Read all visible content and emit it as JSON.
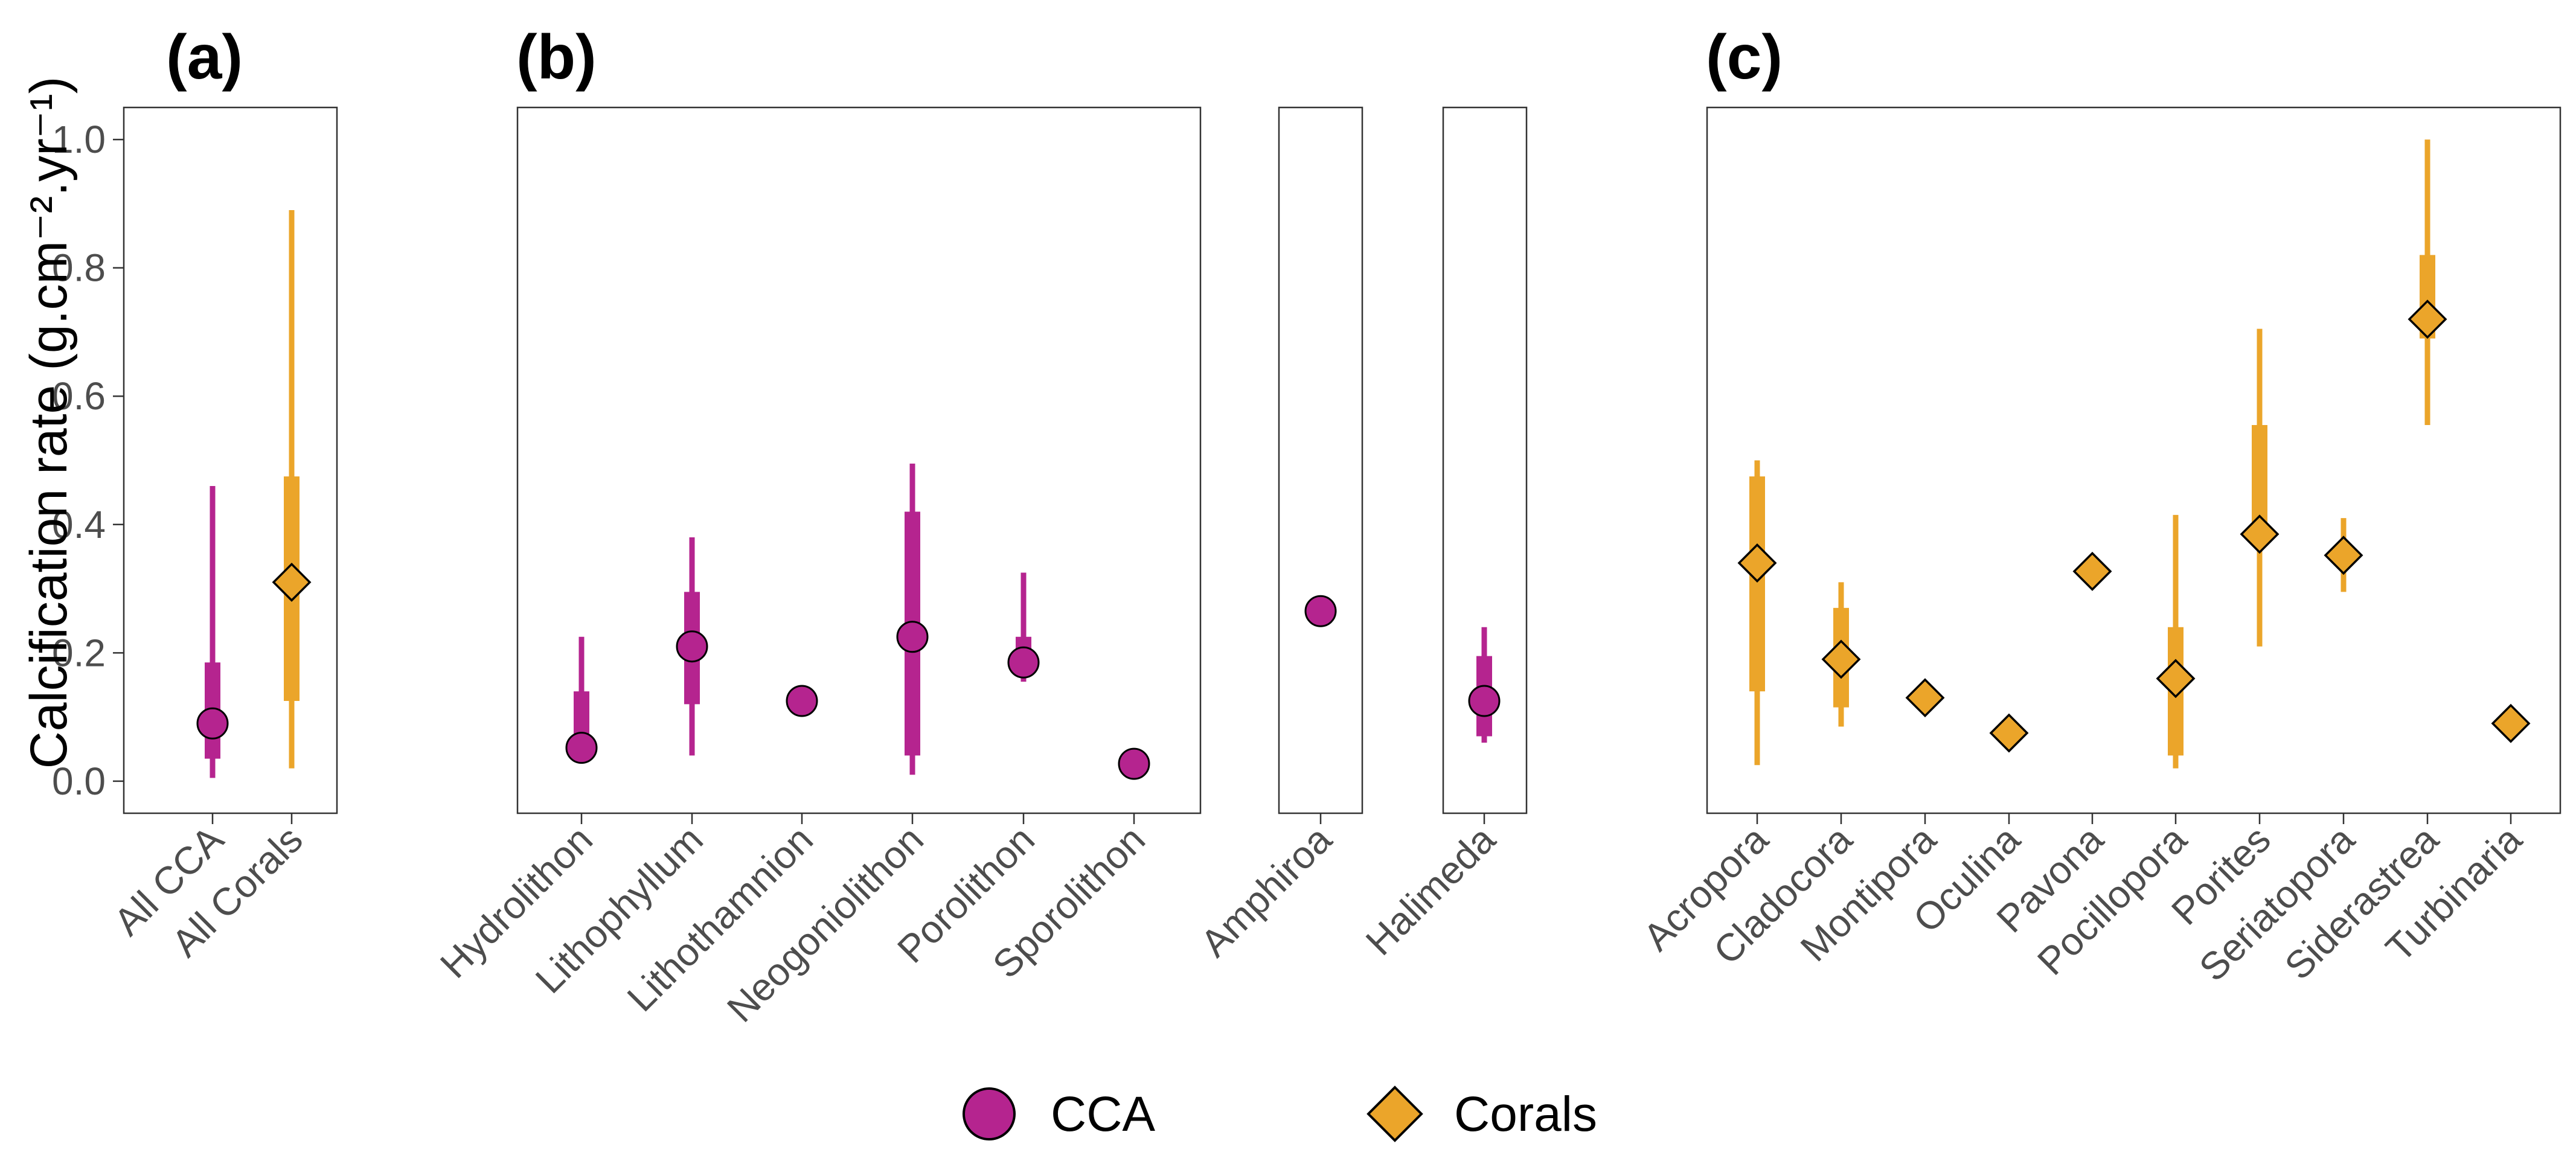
{
  "chart_data": {
    "type": "scatter",
    "ylabel": "Calcification rate (g.cm⁻².yr⁻¹)",
    "ylim": [
      -0.05,
      1.05
    ],
    "yticks": [
      "0.0",
      "0.2",
      "0.4",
      "0.6",
      "0.8",
      "1.0"
    ],
    "colors": {
      "CCA": "#b5248f",
      "Corals": "#eba52a"
    },
    "legend": {
      "placement": "bottom",
      "entries": [
        {
          "label": "CCA",
          "marker": "circle",
          "color": "#b5248f"
        },
        {
          "label": "Corals",
          "marker": "diamond",
          "color": "#eba52a"
        }
      ]
    },
    "panels": [
      {
        "id": "a",
        "title": "(a)",
        "show_y_axis": true,
        "points": [
          {
            "category": "All CCA",
            "group": "CCA",
            "value": 0.09,
            "low": 0.005,
            "high": 0.46,
            "iqr_low": 0.035,
            "iqr_high": 0.185
          },
          {
            "category": "All Corals",
            "group": "Corals",
            "value": 0.31,
            "low": 0.02,
            "high": 0.89,
            "iqr_low": 0.125,
            "iqr_high": 0.475
          }
        ]
      },
      {
        "id": "b1",
        "title": "(b)",
        "points": [
          {
            "category": "Hydrolithon",
            "group": "CCA",
            "value": 0.052,
            "low": 0.052,
            "high": 0.225,
            "iqr_low": 0.052,
            "iqr_high": 0.14
          },
          {
            "category": "Lithophyllum",
            "group": "CCA",
            "value": 0.21,
            "low": 0.04,
            "high": 0.38,
            "iqr_low": 0.12,
            "iqr_high": 0.295
          },
          {
            "category": "Lithothamnion",
            "group": "CCA",
            "value": 0.125
          },
          {
            "category": "Neogoniolithon",
            "group": "CCA",
            "value": 0.225,
            "low": 0.01,
            "high": 0.495,
            "iqr_low": 0.04,
            "iqr_high": 0.42
          },
          {
            "category": "Porolithon",
            "group": "CCA",
            "value": 0.185,
            "low": 0.155,
            "high": 0.325,
            "iqr_low": 0.17,
            "iqr_high": 0.225
          },
          {
            "category": "Sporolithon",
            "group": "CCA",
            "value": 0.027
          }
        ]
      },
      {
        "id": "b2",
        "title": "",
        "points": [
          {
            "category": "Amphiroa",
            "group": "CCA",
            "value": 0.265
          }
        ]
      },
      {
        "id": "b3",
        "title": "",
        "points": [
          {
            "category": "Halimeda",
            "group": "CCA",
            "value": 0.125,
            "low": 0.06,
            "high": 0.24,
            "iqr_low": 0.07,
            "iqr_high": 0.195
          }
        ]
      },
      {
        "id": "c",
        "title": "(c)",
        "points": [
          {
            "category": "Acropora",
            "group": "Corals",
            "value": 0.34,
            "low": 0.025,
            "high": 0.5,
            "iqr_low": 0.14,
            "iqr_high": 0.475
          },
          {
            "category": "Cladocora",
            "group": "Corals",
            "value": 0.19,
            "low": 0.085,
            "high": 0.31,
            "iqr_low": 0.115,
            "iqr_high": 0.27
          },
          {
            "category": "Montipora",
            "group": "Corals",
            "value": 0.13
          },
          {
            "category": "Oculina",
            "group": "Corals",
            "value": 0.075
          },
          {
            "category": "Pavona",
            "group": "Corals",
            "value": 0.327
          },
          {
            "category": "Pocillopora",
            "group": "Corals",
            "value": 0.16,
            "low": 0.02,
            "high": 0.415,
            "iqr_low": 0.04,
            "iqr_high": 0.24
          },
          {
            "category": "Porites",
            "group": "Corals",
            "value": 0.385,
            "low": 0.21,
            "high": 0.705,
            "iqr_low": 0.37,
            "iqr_high": 0.555
          },
          {
            "category": "Seriatopora",
            "group": "Corals",
            "value": 0.352,
            "low": 0.295,
            "high": 0.41,
            "iqr_low": 0.335,
            "iqr_high": 0.37
          },
          {
            "category": "Siderastrea",
            "group": "Corals",
            "value": 0.72,
            "low": 0.555,
            "high": 1.0,
            "iqr_low": 0.69,
            "iqr_high": 0.82
          },
          {
            "category": "Turbinaria",
            "group": "Corals",
            "value": 0.09
          }
        ]
      }
    ]
  }
}
